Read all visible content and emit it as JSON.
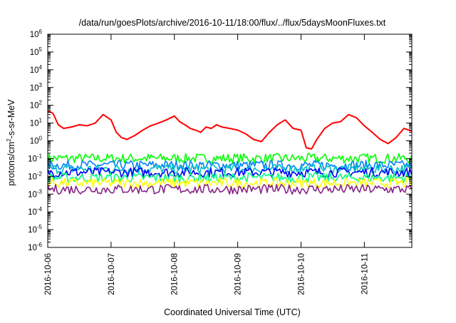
{
  "chart_data": {
    "type": "line",
    "title": "/data/run/goesPlots/archive/2016-10-11/18:00/flux/../flux/5daysMoonFluxes.txt",
    "xlabel": "Coordinated Universal Time (UTC)",
    "ylabel": {
      "base": "protons/cm",
      "sup": "2",
      "rest": "-s-sr-MeV"
    },
    "yscale": "log",
    "ylim": [
      1e-06,
      1000000.0
    ],
    "xlim": [
      "2016-10-06T00:00",
      "2016-10-11T18:00"
    ],
    "x_ticks": [
      "2016-10-06",
      "2016-10-07",
      "2016-10-08",
      "2016-10-09",
      "2016-10-10",
      "2016-10-11"
    ],
    "y_ticks": [
      {
        "value": 1e-06,
        "base": "10",
        "exp": "-6"
      },
      {
        "value": 1e-05,
        "base": "10",
        "exp": "-5"
      },
      {
        "value": 0.0001,
        "base": "10",
        "exp": "-4"
      },
      {
        "value": 0.001,
        "base": "10",
        "exp": "-3"
      },
      {
        "value": 0.01,
        "base": "10",
        "exp": "-2"
      },
      {
        "value": 0.1,
        "base": "10",
        "exp": "-1"
      },
      {
        "value": 1,
        "base": "10",
        "exp": "0"
      },
      {
        "value": 10.0,
        "base": "10",
        "exp": "1"
      },
      {
        "value": 100.0,
        "base": "10",
        "exp": "2"
      },
      {
        "value": 1000.0,
        "base": "10",
        "exp": "3"
      },
      {
        "value": 10000.0,
        "base": "10",
        "exp": "4"
      },
      {
        "value": 100000.0,
        "base": "10",
        "exp": "5"
      },
      {
        "value": 1000000.0,
        "base": "10",
        "exp": "6"
      }
    ],
    "grid": false,
    "series": [
      {
        "color": "#ff0000",
        "x": [
          "2016-10-06T00:00",
          "2016-10-06T02:00",
          "2016-10-06T04:00",
          "2016-10-06T06:00",
          "2016-10-06T09:00",
          "2016-10-06T12:00",
          "2016-10-06T15:00",
          "2016-10-06T18:00",
          "2016-10-06T21:00",
          "2016-10-07T00:00",
          "2016-10-07T02:00",
          "2016-10-07T04:00",
          "2016-10-07T06:00",
          "2016-10-07T09:00",
          "2016-10-07T12:00",
          "2016-10-07T15:00",
          "2016-10-07T18:00",
          "2016-10-07T21:00",
          "2016-10-08T00:00",
          "2016-10-08T02:00",
          "2016-10-08T04:00",
          "2016-10-08T06:00",
          "2016-10-08T08:00",
          "2016-10-08T10:00",
          "2016-10-08T12:00",
          "2016-10-08T14:00",
          "2016-10-08T16:00",
          "2016-10-08T18:00",
          "2016-10-08T21:00",
          "2016-10-09T00:00",
          "2016-10-09T03:00",
          "2016-10-09T06:00",
          "2016-10-09T09:00",
          "2016-10-09T12:00",
          "2016-10-09T15:00",
          "2016-10-09T18:00",
          "2016-10-09T21:00",
          "2016-10-10T00:00",
          "2016-10-10T02:00",
          "2016-10-10T04:00",
          "2016-10-10T06:00",
          "2016-10-10T09:00",
          "2016-10-10T12:00",
          "2016-10-10T15:00",
          "2016-10-10T18:00",
          "2016-10-10T21:00",
          "2016-10-11T00:00",
          "2016-10-11T03:00",
          "2016-10-11T06:00",
          "2016-10-11T09:00",
          "2016-10-11T12:00",
          "2016-10-11T15:00",
          "2016-10-11T18:00"
        ],
        "values": [
          50,
          35,
          8,
          5,
          6,
          8,
          7,
          10,
          30,
          15,
          3,
          1.5,
          1.2,
          2,
          4,
          7,
          10,
          15,
          25,
          12,
          8,
          5,
          4,
          3,
          6,
          5,
          8,
          6,
          5,
          4,
          2.5,
          1.2,
          0.9,
          3,
          8,
          15,
          5,
          4,
          0.4,
          0.35,
          1.2,
          5,
          10,
          12,
          30,
          20,
          7,
          3,
          1.2,
          0.7,
          1.5,
          5,
          3.5
        ]
      },
      {
        "color": "#00ff00",
        "level": 0.11
      },
      {
        "color": "#0080ff",
        "level": 0.045
      },
      {
        "color": "#00c0c0",
        "level": 0.028
      },
      {
        "color": "#0000ff",
        "level": 0.018
      },
      {
        "color": "#00ff80",
        "level": 0.009
      },
      {
        "color": "#ffff00",
        "level": 0.0045
      },
      {
        "color": "#882288",
        "level": 0.002
      }
    ]
  }
}
